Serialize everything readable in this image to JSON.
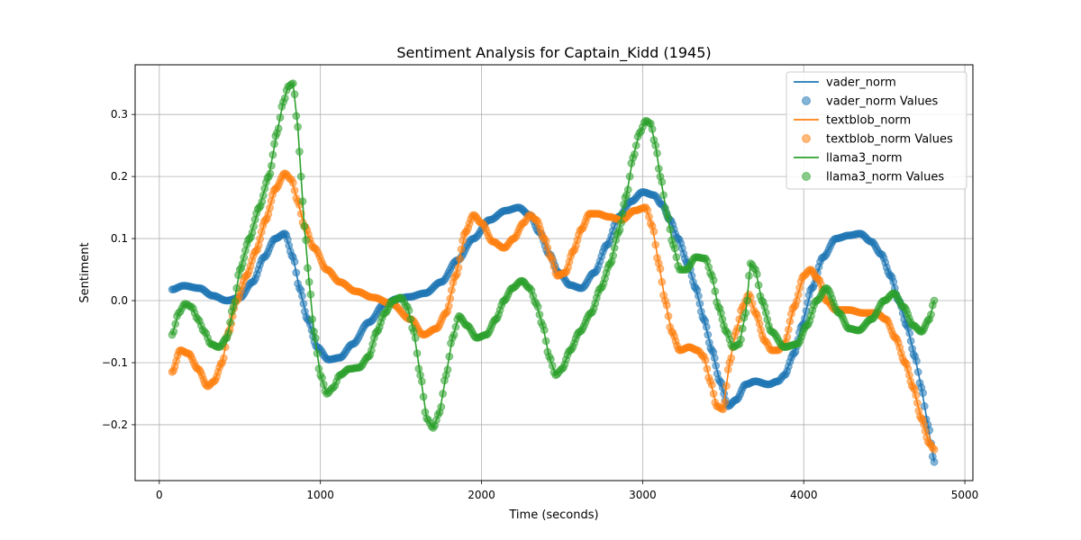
{
  "chart_data": {
    "type": "line",
    "title": "Sentiment Analysis for Captain_Kidd (1945)",
    "xlabel": "Time (seconds)",
    "ylabel": "Sentiment",
    "xlim": [
      -150,
      5050
    ],
    "ylim": [
      -0.29,
      0.38
    ],
    "xticks": [
      0,
      1000,
      2000,
      3000,
      4000,
      5000
    ],
    "yticks": [
      -0.2,
      -0.1,
      0.0,
      0.1,
      0.2,
      0.3
    ],
    "xtick_labels": [
      "0",
      "1000",
      "2000",
      "3000",
      "4000",
      "5000"
    ],
    "ytick_labels": [
      "−0.2",
      "−0.1",
      "0.0",
      "0.1",
      "0.2",
      "0.3"
    ],
    "grid": true,
    "legend_position": "top-right",
    "legend": [
      "vader_norm",
      "vader_norm Values",
      "textblob_norm",
      "textblob_norm Values",
      "llama3_norm",
      "llama3_norm Values"
    ],
    "series": [
      {
        "name": "vader_norm",
        "color": "#1f77b4",
        "x": [
          80,
          150,
          250,
          330,
          420,
          500,
          580,
          650,
          720,
          780,
          830,
          870,
          920,
          980,
          1050,
          1120,
          1200,
          1300,
          1400,
          1480,
          1550,
          1650,
          1750,
          1850,
          1950,
          2050,
          2150,
          2230,
          2300,
          2360,
          2420,
          2480,
          2550,
          2620,
          2700,
          2780,
          2850,
          2930,
          3000,
          3070,
          3120,
          3170,
          3220,
          3280,
          3330,
          3380,
          3430,
          3480,
          3530,
          3580,
          3640,
          3700,
          3780,
          3840,
          3880,
          3940,
          3990,
          4050,
          4120,
          4200,
          4280,
          4350,
          4420,
          4480,
          4540,
          4590,
          4640,
          4690,
          4730,
          4770,
          4810
        ],
        "y": [
          0.018,
          0.024,
          0.02,
          0.008,
          0.0,
          0.005,
          0.03,
          0.07,
          0.1,
          0.108,
          0.07,
          0.02,
          -0.03,
          -0.075,
          -0.095,
          -0.092,
          -0.07,
          -0.035,
          -0.005,
          0.003,
          0.006,
          0.012,
          0.03,
          0.065,
          0.1,
          0.13,
          0.145,
          0.15,
          0.138,
          0.11,
          0.075,
          0.045,
          0.025,
          0.02,
          0.045,
          0.09,
          0.135,
          0.16,
          0.175,
          0.17,
          0.155,
          0.13,
          0.1,
          0.06,
          0.02,
          -0.03,
          -0.08,
          -0.13,
          -0.17,
          -0.16,
          -0.135,
          -0.13,
          -0.135,
          -0.13,
          -0.12,
          -0.085,
          -0.04,
          0.02,
          0.07,
          0.1,
          0.105,
          0.108,
          0.095,
          0.075,
          0.04,
          0.0,
          -0.04,
          -0.09,
          -0.14,
          -0.2,
          -0.26
        ]
      },
      {
        "name": "textblob_norm",
        "color": "#ff7f0e",
        "x": [
          80,
          130,
          180,
          240,
          300,
          340,
          390,
          430,
          480,
          540,
          600,
          660,
          720,
          780,
          820,
          860,
          900,
          960,
          1040,
          1120,
          1220,
          1330,
          1440,
          1560,
          1640,
          1720,
          1780,
          1840,
          1900,
          1950,
          2000,
          2070,
          2140,
          2200,
          2260,
          2300,
          2340,
          2390,
          2430,
          2470,
          2520,
          2570,
          2620,
          2670,
          2720,
          2790,
          2870,
          2950,
          3020,
          3060,
          3100,
          3140,
          3180,
          3230,
          3290,
          3340,
          3380,
          3420,
          3460,
          3500,
          3540,
          3580,
          3620,
          3660,
          3700,
          3760,
          3800,
          3840,
          3880,
          3940,
          4000,
          4040,
          4090,
          4140,
          4200,
          4280,
          4370,
          4450,
          4510,
          4570,
          4630,
          4680,
          4730,
          4780,
          4810
        ],
        "y": [
          -0.115,
          -0.08,
          -0.085,
          -0.11,
          -0.138,
          -0.13,
          -0.1,
          -0.05,
          0.0,
          0.04,
          0.08,
          0.13,
          0.18,
          0.205,
          0.195,
          0.16,
          0.12,
          0.085,
          0.05,
          0.03,
          0.015,
          0.005,
          -0.005,
          -0.03,
          -0.055,
          -0.045,
          -0.02,
          0.04,
          0.11,
          0.138,
          0.125,
          0.095,
          0.085,
          0.1,
          0.125,
          0.138,
          0.13,
          0.1,
          0.07,
          0.04,
          0.045,
          0.08,
          0.115,
          0.14,
          0.14,
          0.135,
          0.13,
          0.145,
          0.15,
          0.12,
          0.06,
          0.0,
          -0.05,
          -0.08,
          -0.075,
          -0.08,
          -0.09,
          -0.13,
          -0.17,
          -0.175,
          -0.1,
          -0.05,
          -0.01,
          0.01,
          -0.02,
          -0.065,
          -0.08,
          -0.08,
          -0.07,
          -0.01,
          0.04,
          0.05,
          0.035,
          0.0,
          -0.015,
          -0.015,
          -0.02,
          -0.02,
          -0.03,
          -0.06,
          -0.1,
          -0.14,
          -0.19,
          -0.23,
          -0.24
        ]
      },
      {
        "name": "llama3_norm",
        "color": "#2ca02c",
        "x": [
          80,
          120,
          160,
          200,
          240,
          280,
          320,
          370,
          420,
          460,
          500,
          560,
          620,
          680,
          730,
          770,
          800,
          830,
          860,
          880,
          900,
          930,
          960,
          1000,
          1040,
          1080,
          1120,
          1180,
          1240,
          1300,
          1350,
          1400,
          1450,
          1500,
          1540,
          1580,
          1620,
          1660,
          1700,
          1740,
          1780,
          1820,
          1860,
          1910,
          1970,
          2030,
          2090,
          2140,
          2190,
          2250,
          2300,
          2340,
          2380,
          2420,
          2460,
          2500,
          2550,
          2610,
          2680,
          2740,
          2800,
          2850,
          2900,
          2940,
          2980,
          3020,
          3050,
          3080,
          3110,
          3150,
          3190,
          3230,
          3270,
          3330,
          3390,
          3430,
          3470,
          3520,
          3560,
          3600,
          3640,
          3670,
          3700,
          3740,
          3800,
          3880,
          3960,
          4020,
          4080,
          4140,
          4220,
          4280,
          4340,
          4420,
          4500,
          4560,
          4620,
          4680,
          4730,
          4780,
          4810
        ],
        "y": [
          -0.055,
          -0.02,
          -0.005,
          -0.01,
          -0.03,
          -0.05,
          -0.07,
          -0.075,
          -0.06,
          -0.01,
          0.05,
          0.1,
          0.15,
          0.2,
          0.27,
          0.32,
          0.345,
          0.35,
          0.28,
          0.2,
          0.12,
          0.03,
          -0.05,
          -0.12,
          -0.15,
          -0.14,
          -0.12,
          -0.11,
          -0.108,
          -0.09,
          -0.05,
          -0.02,
          0.0,
          0.005,
          -0.01,
          -0.05,
          -0.12,
          -0.19,
          -0.205,
          -0.18,
          -0.12,
          -0.06,
          -0.025,
          -0.04,
          -0.06,
          -0.055,
          -0.03,
          0.0,
          0.02,
          0.032,
          0.02,
          -0.005,
          -0.04,
          -0.09,
          -0.12,
          -0.11,
          -0.08,
          -0.05,
          -0.02,
          0.02,
          0.06,
          0.11,
          0.17,
          0.23,
          0.27,
          0.29,
          0.285,
          0.25,
          0.2,
          0.14,
          0.09,
          0.05,
          0.05,
          0.07,
          0.068,
          0.04,
          -0.01,
          -0.05,
          -0.075,
          -0.07,
          -0.02,
          0.06,
          0.05,
          0.0,
          -0.05,
          -0.075,
          -0.07,
          -0.04,
          0.0,
          0.02,
          -0.02,
          -0.045,
          -0.048,
          -0.03,
          0.0,
          0.012,
          -0.01,
          -0.04,
          -0.05,
          -0.03,
          0.0
        ]
      }
    ]
  }
}
